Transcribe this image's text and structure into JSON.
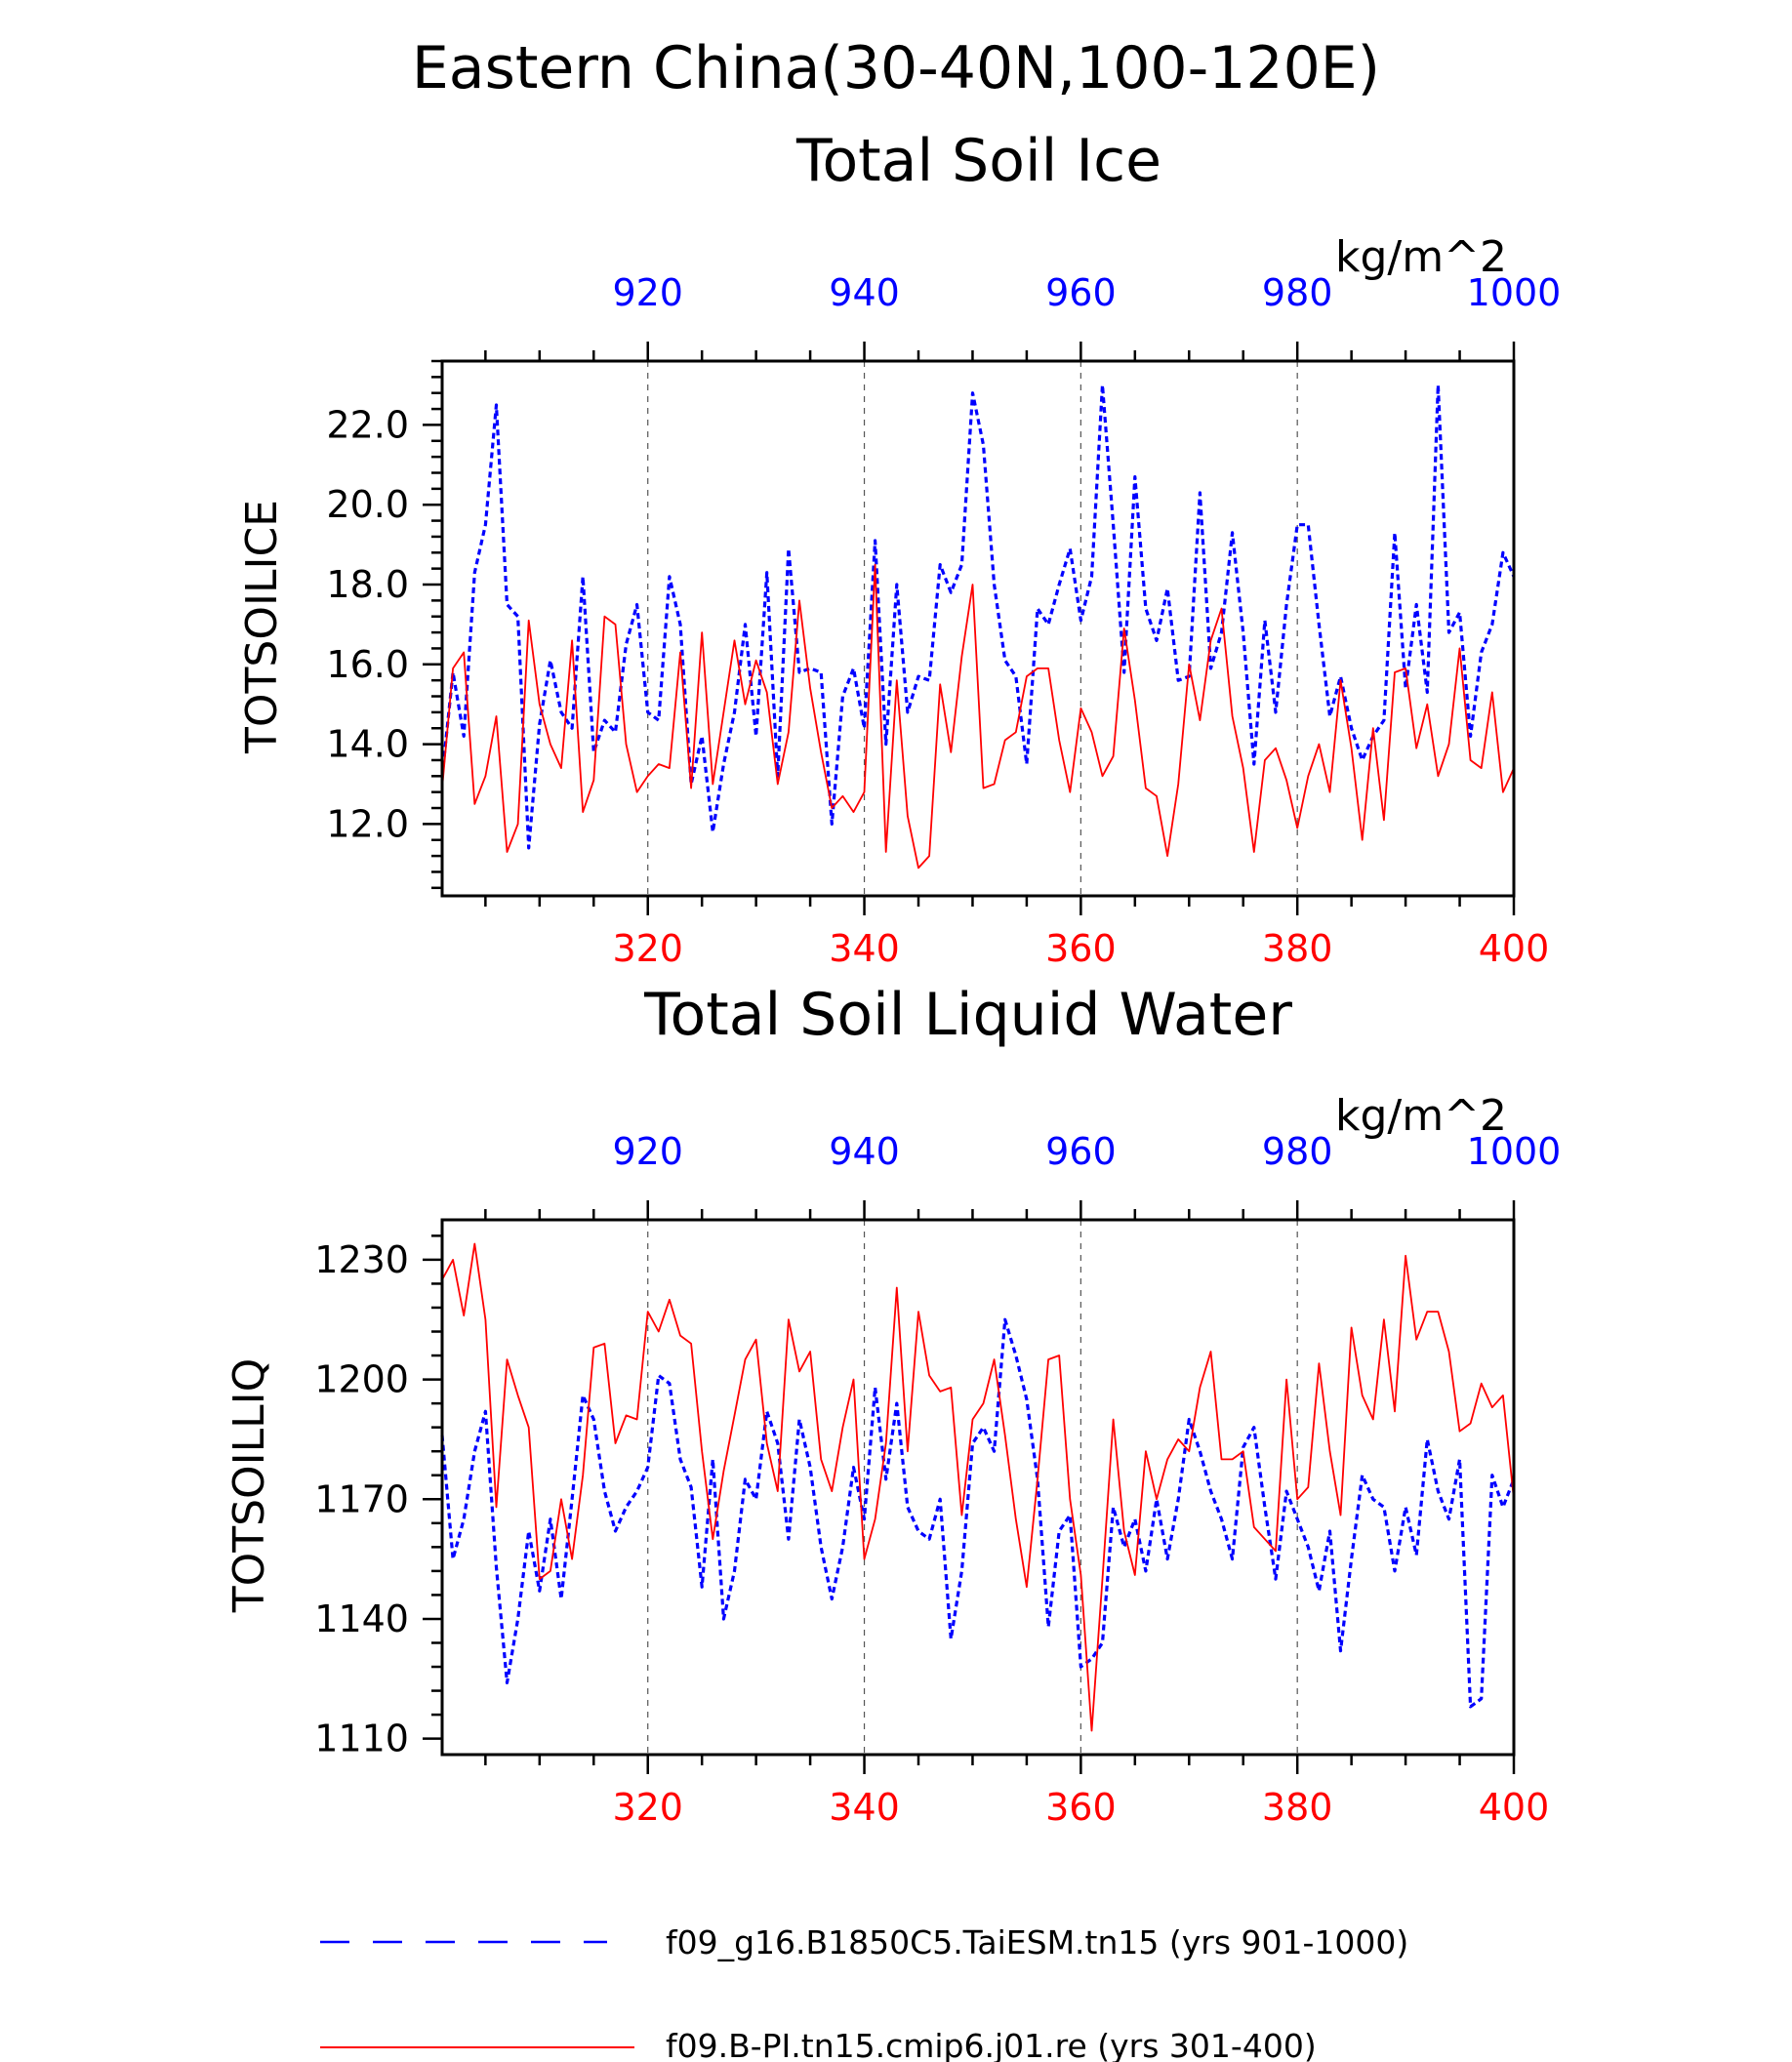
{
  "figure": {
    "title": "Eastern China(30-40N,100-120E)"
  },
  "colors": {
    "blue": "#0000ff",
    "red": "#ff0000",
    "axis": "#000000"
  },
  "legend": {
    "position": "bottom",
    "entries": [
      {
        "label": "f09_g16.B1850C5.TaiESM.tn15 (yrs 901-1000)",
        "color": "#0000ff",
        "style": "dashed"
      },
      {
        "label": "f09.B-PI.tn15.cmip6.j01.re (yrs 301-400)",
        "color": "#ff0000",
        "style": "solid"
      }
    ]
  },
  "chart_data": [
    {
      "type": "line",
      "title": "Total Soil Ice",
      "ylabel": "TOTSOILICE",
      "units": "kg/m^2",
      "ylim": [
        10.2,
        23.6
      ],
      "yticks": [
        "12.0",
        "14.0",
        "16.0",
        "18.0",
        "20.0",
        "22.0"
      ],
      "yticks_num": [
        12,
        14,
        16,
        18,
        20,
        22
      ],
      "x_top": {
        "range": [
          901,
          1000
        ],
        "ticks": [
          920,
          940,
          960,
          980,
          1000
        ],
        "color": "#0000ff"
      },
      "x_bottom": {
        "range": [
          301,
          400
        ],
        "ticks": [
          320,
          340,
          360,
          380,
          400
        ],
        "color": "#ff0000"
      },
      "grid": "vertical dashed at major ticks",
      "series": [
        {
          "color": "#0000ff",
          "style": "dashed",
          "axis": "top",
          "values": [
            13.2,
            15.8,
            14.2,
            18.3,
            19.5,
            22.5,
            17.5,
            17.2,
            11.4,
            14.5,
            16.1,
            14.8,
            14.4,
            18.2,
            13.8,
            14.6,
            14.3,
            16.5,
            17.5,
            14.8,
            14.6,
            18.2,
            17.0,
            13.0,
            14.2,
            11.8,
            13.5,
            14.8,
            17.0,
            14.2,
            18.3,
            13.2,
            18.9,
            15.8,
            15.9,
            15.8,
            12.0,
            15.2,
            15.9,
            14.4,
            19.1,
            14.0,
            18.0,
            14.8,
            15.7,
            15.6,
            18.5,
            17.8,
            18.5,
            22.8,
            21.5,
            18.0,
            16.1,
            15.7,
            13.5,
            17.4,
            17.0,
            18.0,
            18.9,
            17.1,
            18.2,
            23.0,
            19.5,
            15.8,
            20.7,
            17.4,
            16.6,
            17.9,
            15.6,
            15.7,
            20.3,
            15.9,
            16.8,
            19.3,
            16.8,
            13.5,
            17.1,
            14.8,
            17.5,
            19.5,
            19.5,
            17.0,
            14.7,
            15.7,
            14.4,
            13.6,
            14.2,
            14.6,
            19.3,
            15.4,
            17.5,
            15.3,
            23.0,
            16.8,
            17.3,
            14.2,
            16.3,
            17.0,
            18.8,
            18.2
          ]
        },
        {
          "color": "#ff0000",
          "style": "solid",
          "axis": "bottom",
          "values": [
            12.9,
            15.9,
            16.3,
            12.5,
            13.2,
            14.7,
            11.3,
            12.0,
            17.1,
            15.0,
            14.0,
            13.4,
            16.6,
            12.3,
            13.1,
            17.2,
            17.0,
            14.0,
            12.8,
            13.2,
            13.5,
            13.4,
            16.3,
            12.9,
            16.8,
            13.0,
            14.8,
            16.6,
            15.0,
            16.1,
            15.3,
            13.0,
            14.3,
            17.6,
            15.4,
            13.8,
            12.4,
            12.7,
            12.3,
            12.8,
            18.5,
            11.3,
            15.6,
            12.2,
            10.9,
            11.2,
            15.5,
            13.8,
            16.2,
            18.0,
            12.9,
            13.0,
            14.1,
            14.3,
            15.7,
            15.9,
            15.9,
            14.1,
            12.8,
            14.9,
            14.3,
            13.2,
            13.7,
            16.9,
            15.1,
            12.9,
            12.7,
            11.2,
            13.0,
            16.0,
            14.6,
            16.6,
            17.4,
            14.7,
            13.4,
            11.3,
            13.6,
            13.9,
            13.1,
            11.9,
            13.2,
            14.0,
            12.8,
            15.6,
            13.9,
            11.6,
            14.4,
            12.1,
            15.8,
            15.9,
            13.9,
            15.0,
            13.2,
            14.0,
            16.4,
            13.6,
            13.4,
            15.3,
            12.8,
            13.4
          ]
        }
      ]
    },
    {
      "type": "line",
      "title": "Total Soil Liquid Water",
      "ylabel": "TOTSOILLIQ",
      "units": "kg/m^2",
      "ylim": [
        1106,
        1240
      ],
      "yticks": [
        "1110",
        "1140",
        "1170",
        "1200",
        "1230"
      ],
      "yticks_num": [
        1110,
        1140,
        1170,
        1200,
        1230
      ],
      "x_top": {
        "range": [
          901,
          1000
        ],
        "ticks": [
          920,
          940,
          960,
          980,
          1000
        ],
        "color": "#0000ff"
      },
      "x_bottom": {
        "range": [
          301,
          400
        ],
        "ticks": [
          320,
          340,
          360,
          380,
          400
        ],
        "color": "#ff0000"
      },
      "grid": "vertical dashed at major ticks",
      "series": [
        {
          "color": "#0000ff",
          "style": "dashed",
          "axis": "top",
          "values": [
            1186,
            1155,
            1165,
            1182,
            1192,
            1153,
            1124,
            1140,
            1162,
            1147,
            1165,
            1145,
            1170,
            1196,
            1190,
            1172,
            1162,
            1168,
            1172,
            1178,
            1201,
            1199,
            1180,
            1173,
            1148,
            1180,
            1140,
            1152,
            1175,
            1170,
            1192,
            1184,
            1160,
            1190,
            1178,
            1158,
            1145,
            1158,
            1178,
            1165,
            1198,
            1175,
            1194,
            1168,
            1162,
            1160,
            1170,
            1135,
            1152,
            1184,
            1188,
            1182,
            1215,
            1206,
            1195,
            1175,
            1138,
            1162,
            1166,
            1128,
            1130,
            1134,
            1168,
            1158,
            1165,
            1152,
            1170,
            1155,
            1170,
            1190,
            1182,
            1172,
            1165,
            1155,
            1183,
            1188,
            1168,
            1150,
            1172,
            1165,
            1158,
            1147,
            1162,
            1132,
            1155,
            1176,
            1170,
            1168,
            1152,
            1168,
            1156,
            1185,
            1172,
            1165,
            1180,
            1118,
            1120,
            1176,
            1168,
            1175
          ]
        },
        {
          "color": "#ff0000",
          "style": "solid",
          "axis": "bottom",
          "values": [
            1225,
            1230,
            1216,
            1234,
            1215,
            1168,
            1205,
            1196,
            1188,
            1150,
            1152,
            1170,
            1155,
            1176,
            1208,
            1209,
            1184,
            1191,
            1190,
            1217,
            1212,
            1220,
            1211,
            1209,
            1182,
            1160,
            1177,
            1191,
            1205,
            1210,
            1184,
            1172,
            1215,
            1202,
            1207,
            1180,
            1172,
            1188,
            1200,
            1155,
            1165,
            1184,
            1223,
            1182,
            1217,
            1201,
            1197,
            1198,
            1166,
            1190,
            1194,
            1205,
            1186,
            1165,
            1148,
            1175,
            1205,
            1206,
            1170,
            1151,
            1112,
            1150,
            1190,
            1162,
            1151,
            1182,
            1170,
            1180,
            1185,
            1182,
            1198,
            1207,
            1180,
            1180,
            1182,
            1163,
            1160,
            1157,
            1200,
            1170,
            1173,
            1204,
            1182,
            1166,
            1213,
            1196,
            1190,
            1215,
            1192,
            1231,
            1210,
            1217,
            1217,
            1207,
            1187,
            1189,
            1199,
            1193,
            1196,
            1170
          ]
        }
      ]
    }
  ]
}
